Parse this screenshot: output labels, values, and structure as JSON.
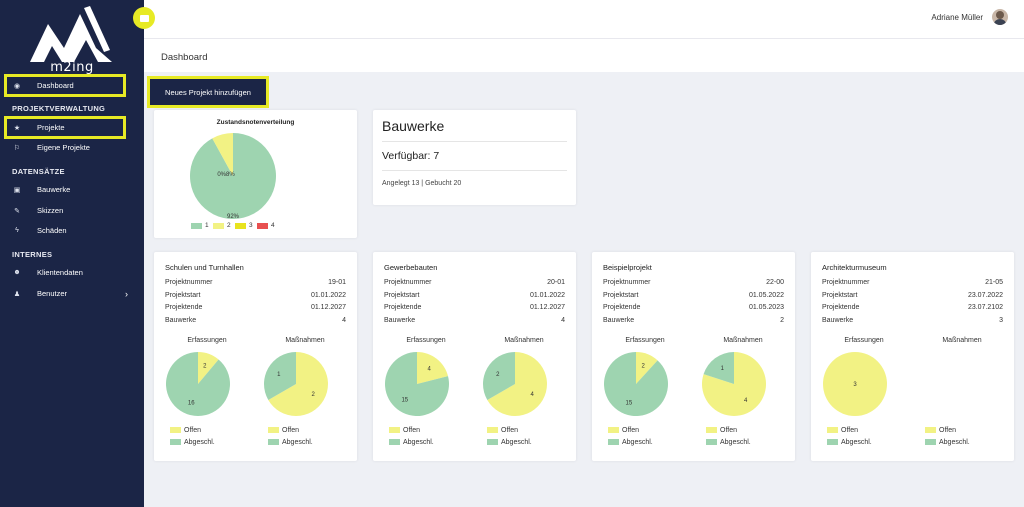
{
  "app": {
    "logo_text": "m2ing"
  },
  "header": {
    "user_name": "Adriane Müller",
    "breadcrumb": "Dashboard"
  },
  "sidebar": {
    "dashboard": "Dashboard",
    "sec_projects": "PROJEKTVERWALTUNG",
    "projekte": "Projekte",
    "eigene": "Eigene Projekte",
    "sec_data": "DATENSÄTZE",
    "bauwerke": "Bauwerke",
    "skizzen": "Skizzen",
    "schaeden": "Schäden",
    "sec_intern": "INTERNES",
    "klienten": "Klientendaten",
    "benutzer": "Benutzer"
  },
  "actions": {
    "add_project": "Neues Projekt hinzufügen"
  },
  "zustand": {
    "title": "Zustandsnotenverteilung",
    "slices": [
      {
        "label": "1",
        "percent": 92,
        "color": "#9ed4b0"
      },
      {
        "label": "2",
        "percent": 8,
        "color": "#f2f284"
      },
      {
        "label": "3",
        "percent": 0,
        "color": "#e8e31e"
      },
      {
        "label": "4",
        "percent": 0,
        "color": "#e85050"
      }
    ],
    "label_big": "92%",
    "label_small": "0%8%"
  },
  "bauwerke": {
    "title": "Bauwerke",
    "available": "Verfügbar: 7",
    "meta": "Angelegt 13 | Gebucht 20"
  },
  "project_labels": {
    "nummer": "Projektnummer",
    "start": "Projektstart",
    "ende": "Projektende",
    "bauwerke": "Bauwerke",
    "erfassungen": "Erfassungen",
    "massnahmen": "Maßnahmen",
    "offen": "Offen",
    "abgeschl": "Abgeschl."
  },
  "colors": {
    "offen": "#f2f284",
    "abgeschl": "#9ed4b0",
    "navy": "#1b2546",
    "highlight": "#e7ea25"
  },
  "projects": [
    {
      "name": "Schulen und Turnhallen",
      "nummer": "19-01",
      "start": "01.01.2022",
      "ende": "01.12.2027",
      "bauwerke": "4",
      "erf": {
        "offen": 2,
        "abgeschl": 16
      },
      "mass": {
        "offen": 2,
        "abgeschl": 1
      }
    },
    {
      "name": "Gewerbebauten",
      "nummer": "20-01",
      "start": "01.01.2022",
      "ende": "01.12.2027",
      "bauwerke": "4",
      "erf": {
        "offen": 4,
        "abgeschl": 15
      },
      "mass": {
        "offen": 4,
        "abgeschl": 2
      }
    },
    {
      "name": "Beispielprojekt",
      "nummer": "22-00",
      "start": "01.05.2022",
      "ende": "01.05.2023",
      "bauwerke": "2",
      "erf": {
        "offen": 2,
        "abgeschl": 15
      },
      "mass": {
        "offen": 4,
        "abgeschl": 1
      }
    },
    {
      "name": "Architekturmuseum",
      "nummer": "21-05",
      "start": "23.07.2022",
      "ende": "23.07.2102",
      "bauwerke": "3",
      "erf": {
        "offen": 3,
        "abgeschl": 0
      },
      "mass": {
        "offen": 0,
        "abgeschl": 0
      }
    }
  ]
}
